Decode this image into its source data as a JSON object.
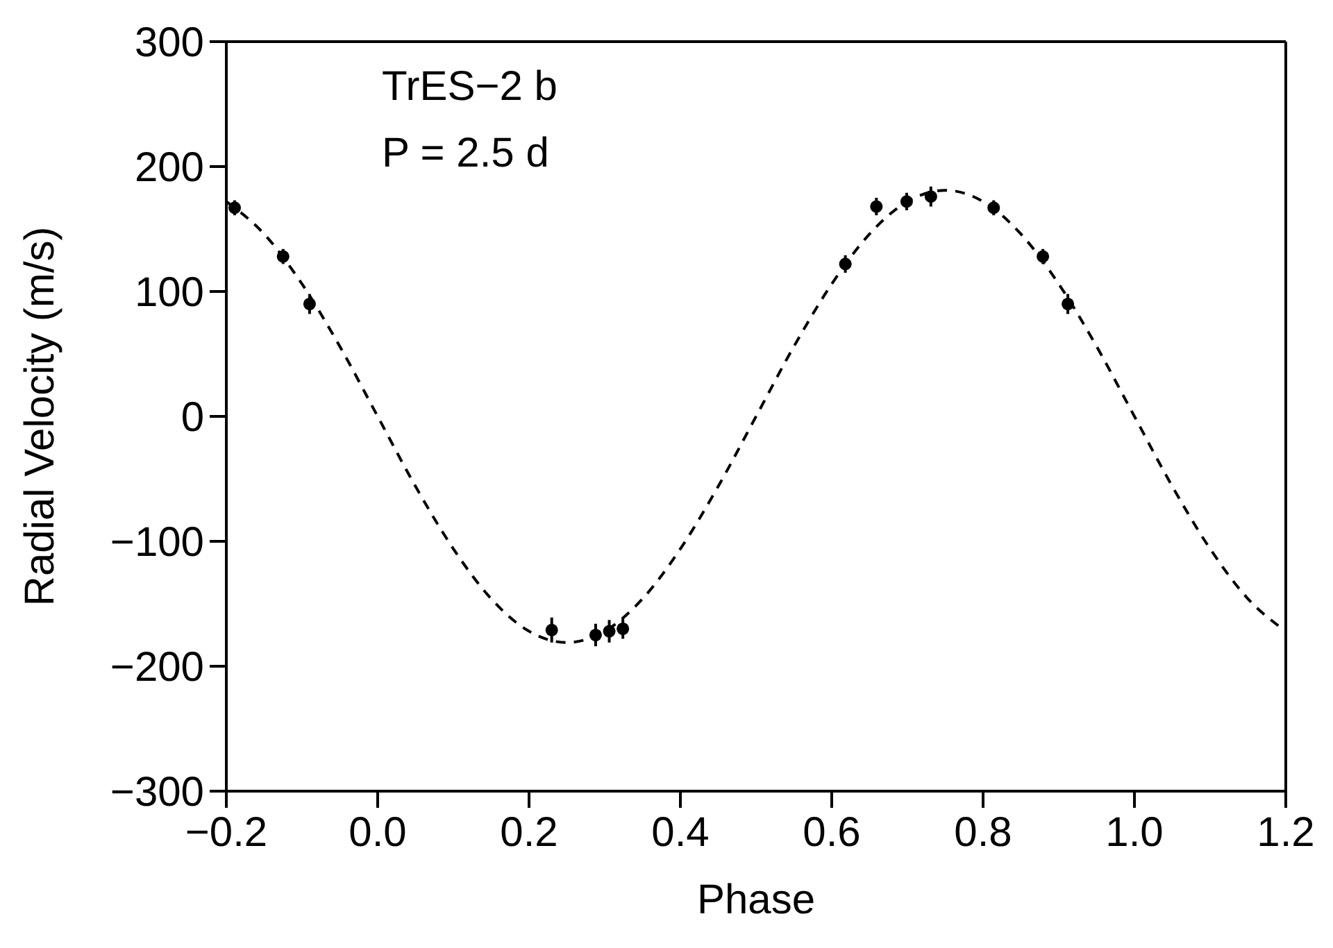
{
  "chart_data": {
    "type": "scatter",
    "xlabel": "Phase",
    "ylabel": "Radial Velocity  (m/s)",
    "annotations": [
      "TrES−2 b",
      "P = 2.5 d"
    ],
    "xlim": [
      -0.2,
      1.2
    ],
    "xticks": [
      {
        "value": -0.2,
        "label": "−0.2"
      },
      {
        "value": 0,
        "label": "0.0"
      },
      {
        "value": 0.2,
        "label": "0.2"
      },
      {
        "value": 0.4,
        "label": "0.4"
      },
      {
        "value": 0.6,
        "label": "0.6"
      },
      {
        "value": 0.8,
        "label": "0.8"
      },
      {
        "value": 1,
        "label": "1.0"
      },
      {
        "value": 1.2,
        "label": "1.2"
      }
    ],
    "ylim": [
      -300,
      300
    ],
    "yticks": [
      {
        "value": -300,
        "label": "−300"
      },
      {
        "value": -200,
        "label": "−200"
      },
      {
        "value": -100,
        "label": "−100"
      },
      0,
      100,
      200,
      300
    ],
    "legend": false,
    "series": [
      {
        "type": "line",
        "color": "#000000",
        "line_style": "dashed",
        "marker": "none",
        "x": [
          -0.2,
          -0.15,
          -0.1,
          -0.05,
          0,
          0.05,
          0.1,
          0.15,
          0.2,
          0.25,
          0.3,
          0.35,
          0.4,
          0.45,
          0.5,
          0.55,
          0.6,
          0.65,
          0.7,
          0.75,
          0.8,
          0.85,
          0.9,
          0.95,
          1,
          1.05,
          1.1,
          1.15,
          1.2
        ],
        "values": [
          172,
          146,
          106,
          56,
          0,
          -56,
          -106,
          -146,
          -172,
          -181,
          -172,
          -146,
          -106,
          -56,
          0,
          56,
          106,
          146,
          172,
          181,
          172,
          146,
          106,
          56,
          0,
          -56,
          -106,
          -146,
          -172
        ]
      },
      {
        "color": "#000000",
        "marker": "circle",
        "x": [
          0.23,
          0.288,
          0.306,
          0.324,
          0.618,
          0.659,
          0.699,
          0.731,
          0.814,
          0.879,
          0.912
        ],
        "values": [
          -171,
          -175,
          -172,
          -170,
          122,
          168,
          172,
          176,
          167,
          128,
          90
        ],
        "errors": [
          10,
          9,
          9,
          8,
          7,
          7,
          7,
          8,
          6,
          6,
          8
        ]
      },
      {
        "color": "#000000",
        "marker": "circle",
        "x": [
          -0.189,
          -0.125,
          -0.09
        ],
        "values": [
          167,
          128,
          90
        ],
        "errors": [
          6,
          6,
          8
        ]
      }
    ]
  }
}
